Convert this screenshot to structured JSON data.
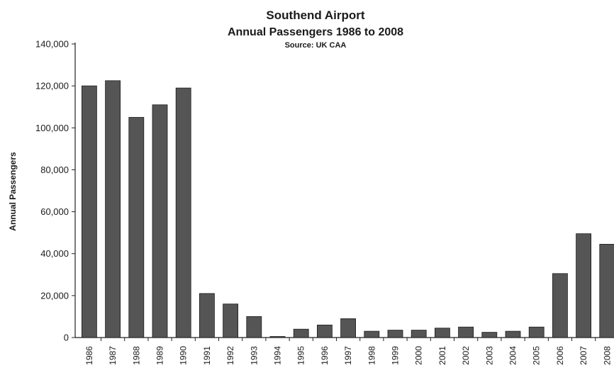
{
  "chart_data": {
    "type": "bar",
    "title": "Southend Airport",
    "subtitle": "Annual Passengers 1986 to 2008",
    "source": "Source: UK CAA",
    "xlabel": "",
    "ylabel": "Annual Passengers",
    "ylim": [
      0,
      140000
    ],
    "yticks": [
      "0",
      "20,000",
      "40,000",
      "60,000",
      "80,000",
      "100,000",
      "120,000",
      "140,000"
    ],
    "ytick_values": [
      0,
      20000,
      40000,
      60000,
      80000,
      100000,
      120000,
      140000
    ],
    "categories": [
      "1986",
      "1987",
      "1988",
      "1989",
      "1990",
      "1991",
      "1992",
      "1993",
      "1994",
      "1995",
      "1996",
      "1997",
      "1998",
      "1999",
      "2000",
      "2001",
      "2002",
      "2003",
      "2004",
      "2005",
      "2006",
      "2007",
      "2008"
    ],
    "values": [
      120000,
      122500,
      105000,
      111000,
      119000,
      21000,
      16000,
      10000,
      500,
      4000,
      6000,
      9000,
      3000,
      3500,
      3500,
      4500,
      5000,
      2500,
      3000,
      5000,
      30500,
      49500,
      44500
    ],
    "bar_color": "#555555",
    "grid": false,
    "legend": "none"
  }
}
